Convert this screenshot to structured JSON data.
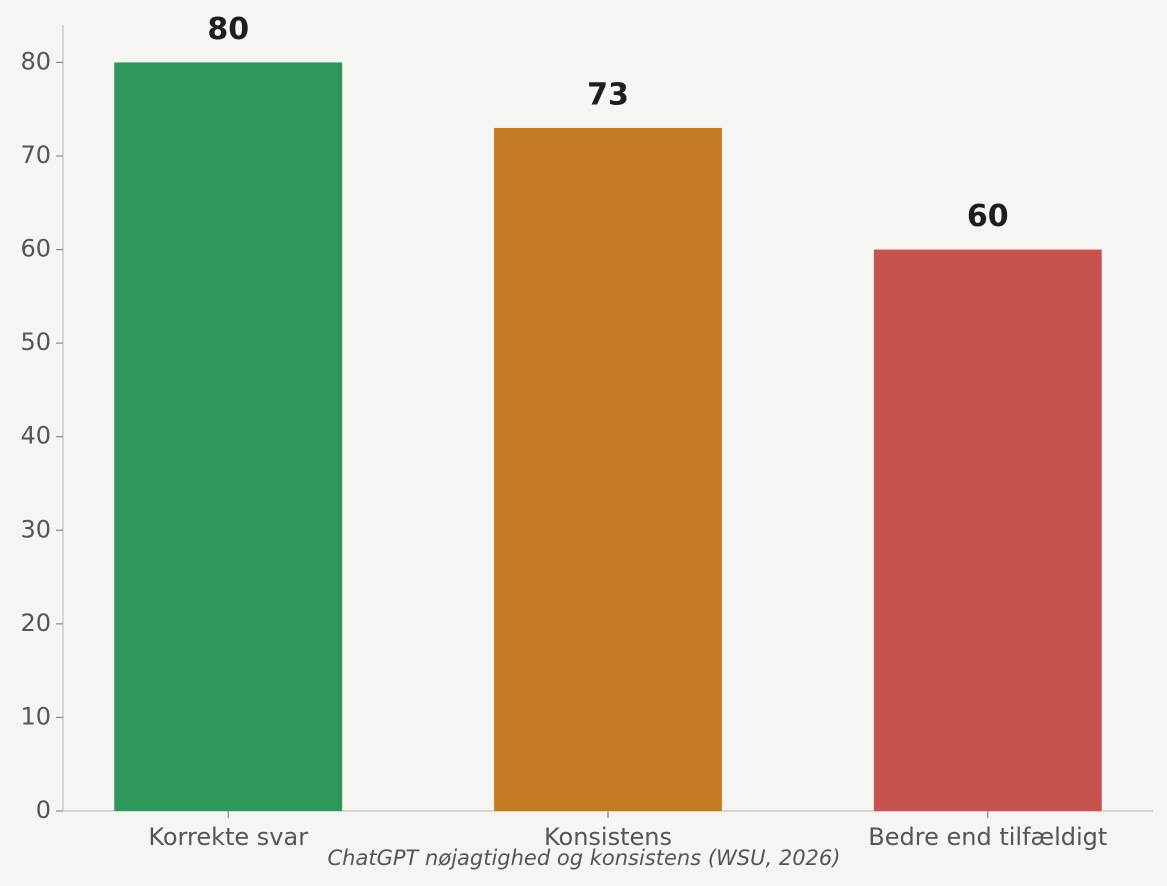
{
  "chart_data": {
    "type": "bar",
    "caption": "ChatGPT nøjagtighed og konsistens (WSU, 2026)",
    "categories": [
      "Korrekte svar",
      "Konsistens",
      "Bedre end tilfældigt"
    ],
    "values": [
      80,
      73,
      60
    ],
    "colors": [
      "#2e9759",
      "#c47b22",
      "#c6534e"
    ],
    "ylim": [
      0,
      84
    ],
    "yticks": [
      0,
      10,
      20,
      30,
      40,
      50,
      60,
      70,
      80
    ],
    "grid": false
  }
}
